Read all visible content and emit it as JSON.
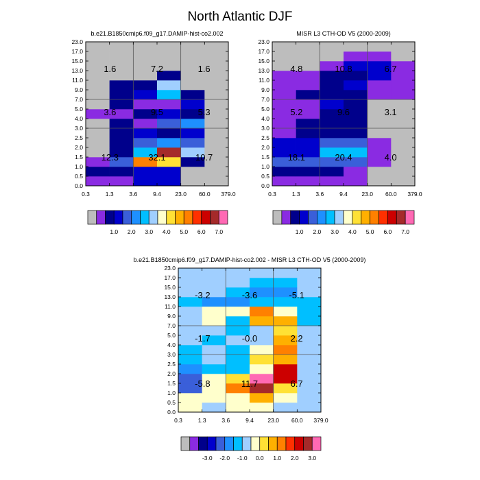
{
  "figure_title": "North Atlantic DJF",
  "palettes": {
    "abs": [
      "#bdbdbd",
      "#8a2be2",
      "#00008b",
      "#0000cd",
      "#3a5fd9",
      "#1e90ff",
      "#00bfff",
      "#a0cfff",
      "#ffffcc",
      "#ffe135",
      "#ffb000",
      "#ff8000",
      "#ff3000",
      "#cc0000",
      "#a52a2a",
      "#ff69b4"
    ],
    "diff": [
      "#bdbdbd",
      "#8a2be2",
      "#00008b",
      "#0000cd",
      "#3a5fd9",
      "#1e90ff",
      "#00bfff",
      "#a0cfff",
      "#ffffcc",
      "#ffe135",
      "#ffb000",
      "#ff8000",
      "#ff3000",
      "#cc0000",
      "#a52a2a",
      "#ff69b4"
    ]
  },
  "chart_data": [
    {
      "type": "heatmap",
      "title": "b.e21.B1850cmip6.f09_g17.DAMIP-hist-co2.002",
      "x_tick_labels": [
        "0.3",
        "1.3",
        "3.6",
        "9.4",
        "23.0",
        "60.0",
        "379.0"
      ],
      "y_tick_labels": [
        "0.0",
        "0.5",
        "1.0",
        "1.5",
        "2.0",
        "2.5",
        "3.0",
        "4.0",
        "5.0",
        "7.0",
        "9.0",
        "11.0",
        "13.0",
        "15.0",
        "17.0",
        "23.0"
      ],
      "palette": "abs",
      "colorbar_labels": [
        "1.0",
        "2.0",
        "3.0",
        "4.0",
        "5.0",
        "6.0",
        "7.0"
      ],
      "region_labels": [
        "1.6",
        "7.2",
        "1.6",
        "3.6",
        "9.5",
        "5.3",
        "12.3",
        "32.1",
        "10.7"
      ],
      "cells": [
        [
          1,
          1,
          3,
          3,
          0,
          0
        ],
        [
          2,
          2,
          3,
          3,
          0,
          0
        ],
        [
          1,
          4,
          11,
          9,
          2,
          0
        ],
        [
          0,
          2,
          6,
          14,
          7,
          0
        ],
        [
          0,
          2,
          4,
          5,
          4,
          0
        ],
        [
          0,
          2,
          3,
          2,
          3,
          0
        ],
        [
          0,
          2,
          1,
          4,
          5,
          0
        ],
        [
          1,
          1,
          2,
          3,
          2,
          0
        ],
        [
          0,
          2,
          1,
          1,
          3,
          0
        ],
        [
          0,
          2,
          3,
          6,
          2,
          0
        ],
        [
          0,
          2,
          2,
          7,
          0,
          0
        ],
        [
          0,
          0,
          0,
          2,
          0,
          0
        ],
        [
          0,
          0,
          0,
          0,
          0,
          0
        ],
        [
          0,
          0,
          0,
          0,
          0,
          0
        ],
        [
          0,
          0,
          0,
          0,
          0,
          0
        ]
      ]
    },
    {
      "type": "heatmap",
      "title": "MISR L3 CTH-OD V5 (2000-2009)",
      "x_tick_labels": [
        "0.3",
        "1.3",
        "3.6",
        "9.4",
        "23.0",
        "60.0",
        "379.0"
      ],
      "y_tick_labels": [
        "0.0",
        "0.5",
        "1.0",
        "1.5",
        "2.0",
        "2.5",
        "3.0",
        "4.0",
        "5.0",
        "7.0",
        "9.0",
        "11.0",
        "13.0",
        "15.0",
        "17.0",
        "23.0"
      ],
      "palette": "abs",
      "colorbar_labels": [
        "1.0",
        "2.0",
        "3.0",
        "4.0",
        "5.0",
        "6.0",
        "7.0"
      ],
      "region_labels": [
        "4.8",
        "10.8",
        "6.7",
        "5.2",
        "9.6",
        "3.1",
        "18.1",
        "20.4",
        "4.0"
      ],
      "cells": [
        [
          1,
          1,
          1,
          1,
          0,
          0
        ],
        [
          2,
          2,
          2,
          1,
          0,
          0
        ],
        [
          4,
          4,
          4,
          4,
          1,
          0
        ],
        [
          3,
          3,
          6,
          6,
          1,
          0
        ],
        [
          3,
          3,
          4,
          4,
          1,
          0
        ],
        [
          1,
          2,
          2,
          2,
          0,
          0
        ],
        [
          1,
          2,
          2,
          2,
          0,
          0
        ],
        [
          1,
          1,
          2,
          2,
          0,
          0
        ],
        [
          1,
          1,
          3,
          2,
          0,
          0
        ],
        [
          1,
          2,
          2,
          2,
          1,
          1
        ],
        [
          1,
          1,
          2,
          3,
          1,
          1
        ],
        [
          1,
          1,
          2,
          2,
          3,
          1
        ],
        [
          0,
          0,
          1,
          3,
          3,
          1
        ],
        [
          0,
          0,
          0,
          1,
          1,
          0
        ],
        [
          0,
          0,
          0,
          0,
          0,
          0
        ]
      ]
    },
    {
      "type": "heatmap",
      "title": "b.e21.B1850cmip6.f09_g17.DAMIP-hist-co2.002 - MISR L3 CTH-OD V5 (2000-2009)",
      "x_tick_labels": [
        "0.3",
        "1.3",
        "3.6",
        "9.4",
        "23.0",
        "60.0",
        "379.0"
      ],
      "y_tick_labels": [
        "0.0",
        "0.5",
        "1.0",
        "1.5",
        "2.0",
        "2.5",
        "3.0",
        "4.0",
        "5.0",
        "7.0",
        "9.0",
        "11.0",
        "13.0",
        "15.0",
        "17.0",
        "23.0"
      ],
      "palette": "diff",
      "colorbar_labels": [
        "-3.0",
        "-2.0",
        "-1.0",
        "0.0",
        "1.0",
        "2.0",
        "3.0"
      ],
      "region_labels": [
        "-3.2",
        "-3.6",
        "-5.1",
        "-1.7",
        "-0.0",
        "2.2",
        "-5.8",
        "11.7",
        "6.7"
      ],
      "cells": [
        [
          8,
          7,
          8,
          8,
          7,
          7
        ],
        [
          8,
          8,
          8,
          10,
          8,
          7
        ],
        [
          4,
          8,
          11,
          14,
          9,
          7
        ],
        [
          4,
          8,
          9,
          15,
          13,
          7
        ],
        [
          5,
          6,
          6,
          8,
          13,
          7
        ],
        [
          6,
          7,
          6,
          9,
          10,
          7
        ],
        [
          6,
          7,
          6,
          8,
          11,
          7
        ],
        [
          7,
          6,
          7,
          7,
          10,
          7
        ],
        [
          7,
          7,
          6,
          7,
          9,
          7
        ],
        [
          7,
          8,
          6,
          10,
          10,
          6
        ],
        [
          7,
          8,
          8,
          11,
          8,
          6
        ],
        [
          6,
          5,
          5,
          6,
          6,
          6
        ],
        [
          7,
          7,
          6,
          5,
          5,
          7
        ],
        [
          7,
          7,
          7,
          6,
          6,
          7
        ],
        [
          7,
          7,
          7,
          7,
          7,
          7
        ]
      ]
    }
  ]
}
